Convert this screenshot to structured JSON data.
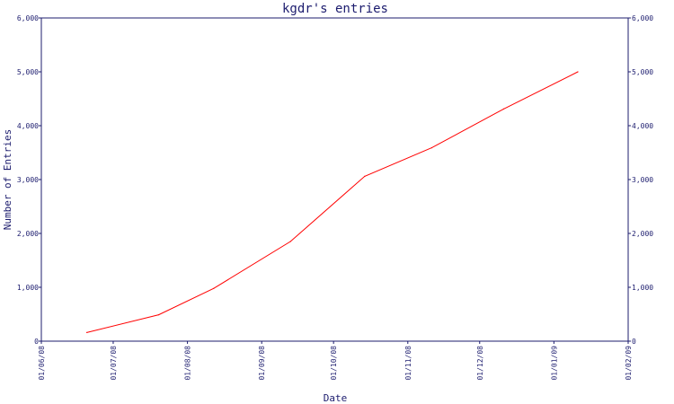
{
  "chart_data": {
    "type": "line",
    "title": "kgdr's entries",
    "xlabel": "Date",
    "ylabel": "Number of Entries",
    "x_tick_labels": [
      "01/06/08",
      "01/07/08",
      "01/08/08",
      "01/09/08",
      "01/10/08",
      "01/11/08",
      "01/12/08",
      "01/01/09",
      "01/02/09"
    ],
    "y_tick_labels": [
      "0",
      "1,000",
      "2,000",
      "3,000",
      "4,000",
      "5,000",
      "6,000"
    ],
    "ylim": [
      0,
      6000
    ],
    "xlim": [
      "2008-06-01",
      "2009-02-01"
    ],
    "grid": false,
    "series": [
      {
        "color": "#ff0000",
        "x": [
          "2008-06-20",
          "2008-07-20",
          "2008-08-12",
          "2008-09-13",
          "2008-10-14",
          "2008-11-11",
          "2008-12-11",
          "2009-01-11"
        ],
        "y": [
          160,
          490,
          980,
          1850,
          3060,
          3590,
          4310,
          5000
        ]
      }
    ],
    "colors": {
      "axis": "#1c1c6e",
      "line": "#ff0000",
      "background": "#ffffff"
    }
  }
}
